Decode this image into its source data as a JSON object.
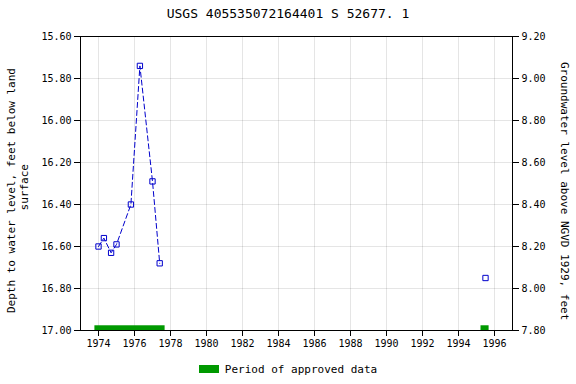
{
  "chart_data": {
    "type": "line",
    "title": "USGS 405535072164401 S 52677. 1",
    "ylabel": "Depth to water level, feet below land\n surface",
    "y2label": "Groundwater level above NGVD 1929, feet",
    "xlim": [
      1973.0,
      1997.0
    ],
    "xticks": [
      1974,
      1976,
      1978,
      1980,
      1982,
      1984,
      1986,
      1988,
      1990,
      1992,
      1994,
      1996
    ],
    "ylim": [
      17.0,
      15.6
    ],
    "yticks": [
      {
        "value": 15.6,
        "label": "15.60"
      },
      {
        "value": 15.8,
        "label": "15.80"
      },
      {
        "value": 16.0,
        "label": "16.00"
      },
      {
        "value": 16.2,
        "label": "16.20"
      },
      {
        "value": 16.4,
        "label": "16.40"
      },
      {
        "value": 16.6,
        "label": "16.60"
      },
      {
        "value": 16.8,
        "label": "16.80"
      },
      {
        "value": 17.0,
        "label": "17.00"
      }
    ],
    "y2lim": [
      7.8,
      9.2
    ],
    "y2ticks": [
      {
        "value": 9.2,
        "label": "9.20"
      },
      {
        "value": 9.0,
        "label": "9.00"
      },
      {
        "value": 8.8,
        "label": "8.80"
      },
      {
        "value": 8.6,
        "label": "8.60"
      },
      {
        "value": 8.4,
        "label": "8.40"
      },
      {
        "value": 8.2,
        "label": "8.20"
      },
      {
        "value": 8.0,
        "label": "8.00"
      },
      {
        "value": 7.8,
        "label": "7.80"
      }
    ],
    "grid": true,
    "legend": "bottom",
    "series": [
      {
        "x": [
          1974.0,
          1974.3,
          1974.7,
          1975.0,
          1975.8,
          1976.3,
          1977.0,
          1977.4
        ],
        "values": [
          16.6,
          16.56,
          16.63,
          16.59,
          16.4,
          15.74,
          16.29,
          16.68
        ],
        "color": "#0000cc",
        "marker": "square",
        "line_style": "dashed"
      },
      {
        "x": [
          1995.5
        ],
        "values": [
          16.75
        ],
        "color": "#0000cc",
        "marker": "square",
        "line_style": "none"
      }
    ],
    "approved_periods": {
      "name": "Period of approved data",
      "color": "#009900",
      "y": 17.0,
      "height": 0.045,
      "start": [
        1973.8,
        1995.25
      ],
      "width": [
        3.9,
        0.45
      ]
    }
  }
}
